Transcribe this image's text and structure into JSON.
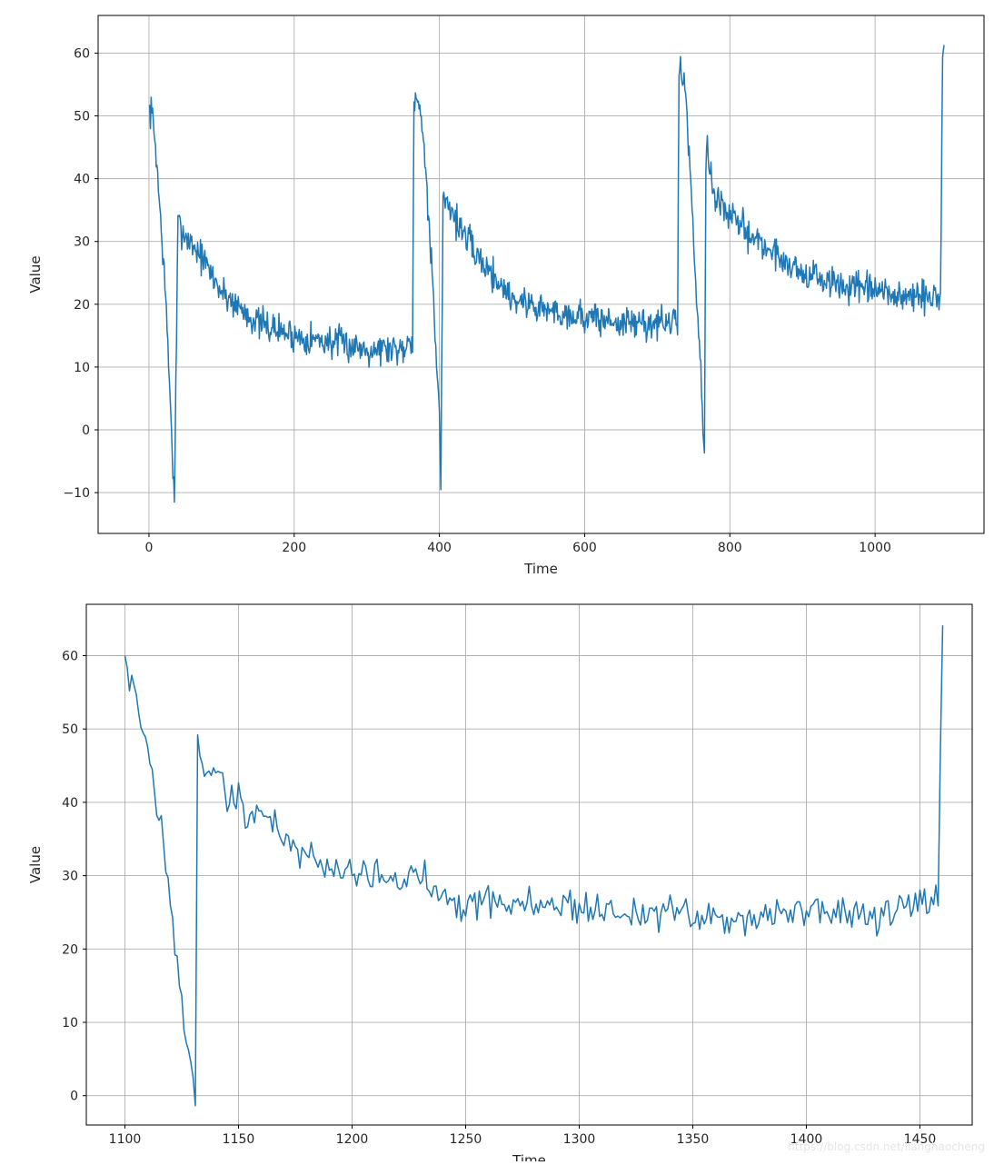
{
  "chart_data": [
    {
      "type": "line",
      "xlabel": "Time",
      "ylabel": "Value",
      "xlim": [
        -70,
        1150
      ],
      "ylim": [
        -16.5,
        66
      ],
      "xticks": [
        0,
        200,
        400,
        600,
        800,
        1000
      ],
      "yticks": [
        -10,
        0,
        10,
        20,
        30,
        40,
        50,
        60
      ],
      "grid": true,
      "line_color": "#1f77b4",
      "x_start": 0,
      "x_end": 1095,
      "series": [
        {
          "x": [
            0,
            5,
            10,
            15,
            20,
            25,
            30,
            35,
            40,
            50,
            70,
            100,
            150,
            200,
            250,
            300,
            350,
            363,
            365,
            370,
            375,
            380,
            385,
            390,
            395,
            400,
            402,
            405,
            410,
            420,
            450,
            500,
            550,
            600,
            650,
            700,
            728,
            730,
            735,
            740,
            745,
            750,
            755,
            760,
            765,
            767,
            770,
            775,
            780,
            800,
            850,
            900,
            950,
            1000,
            1050,
            1090,
            1093,
            1095
          ],
          "values": [
            51,
            50,
            44,
            35,
            27,
            16,
            3,
            -12,
            33,
            31,
            28,
            22,
            17,
            15,
            14,
            13,
            13,
            15,
            53,
            52,
            50,
            45,
            33,
            25,
            12,
            2,
            -9,
            37,
            37,
            34,
            28,
            21,
            19,
            18,
            17,
            17,
            17,
            58,
            57,
            52,
            42,
            30,
            20,
            10,
            -5,
            45,
            44,
            40,
            37,
            34,
            29,
            25,
            23,
            22,
            21,
            21,
            60,
            61
          ]
        }
      ]
    },
    {
      "type": "line",
      "xlabel": "Time",
      "ylabel": "Value",
      "xlim": [
        1083,
        1473
      ],
      "ylim": [
        -4,
        67
      ],
      "xticks": [
        1100,
        1150,
        1200,
        1250,
        1300,
        1350,
        1400,
        1450
      ],
      "yticks": [
        0,
        10,
        20,
        30,
        40,
        50,
        60
      ],
      "grid": true,
      "line_color": "#1f77b4",
      "x_start": 1100,
      "x_end": 1460,
      "series": [
        {
          "x": [
            1100,
            1102,
            1104,
            1106,
            1108,
            1110,
            1112,
            1114,
            1116,
            1118,
            1120,
            1122,
            1124,
            1126,
            1128,
            1130,
            1131,
            1132,
            1135,
            1140,
            1145,
            1150,
            1155,
            1160,
            1165,
            1170,
            1175,
            1180,
            1185,
            1190,
            1200,
            1210,
            1220,
            1230,
            1240,
            1250,
            1260,
            1270,
            1280,
            1290,
            1300,
            1310,
            1320,
            1330,
            1340,
            1350,
            1360,
            1370,
            1380,
            1390,
            1400,
            1410,
            1420,
            1430,
            1440,
            1450,
            1455,
            1457,
            1458,
            1460
          ],
          "values": [
            61,
            57,
            56,
            53,
            50,
            46,
            44,
            39,
            37,
            31,
            27,
            20,
            15,
            10,
            6,
            2,
            -0.5,
            48,
            45,
            44,
            41,
            40,
            38,
            39,
            37,
            35,
            34,
            33,
            32,
            31,
            31,
            30,
            29,
            30,
            28,
            26,
            27,
            26,
            26,
            26,
            26,
            25,
            25,
            25,
            25,
            24,
            24,
            24,
            25,
            25,
            25,
            25,
            25,
            24,
            25,
            26,
            26,
            27,
            27,
            64
          ]
        }
      ]
    }
  ],
  "watermark": "https://blog.csdn.net/lianghaocheng"
}
